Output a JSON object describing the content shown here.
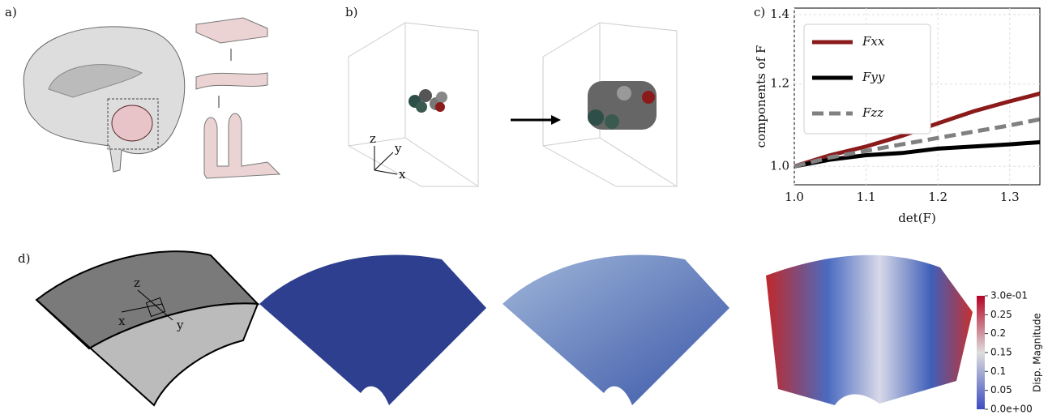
{
  "panel_labels": [
    "a)",
    "b)",
    "c)",
    "d)"
  ],
  "panel_b": {
    "axes": [
      "z",
      "y",
      "x"
    ]
  },
  "panel_d": {
    "axes": [
      "z",
      "x",
      "y"
    ],
    "colorbar": {
      "title": "Disp. Magnitude",
      "range": [
        0,
        0.3
      ],
      "ticks": [
        {
          "value": 0.3,
          "label": "3.0e-01"
        },
        0.25,
        0.2,
        0.15,
        0.1,
        0.05,
        {
          "value": 0,
          "label": "0.0e+00"
        }
      ]
    }
  },
  "chart_data": {
    "type": "line",
    "xlabel": "det(F)",
    "ylabel": "components of F",
    "x": [
      1.0,
      1.05,
      1.1,
      1.15,
      1.2,
      1.25,
      1.3,
      1.342
    ],
    "series": [
      {
        "name": "Fxx",
        "color": "#8b1a1a",
        "linestyle": "solid",
        "values": [
          1.0,
          1.025,
          1.045,
          1.07,
          1.1,
          1.13,
          1.155,
          1.175
        ]
      },
      {
        "name": "Fyy",
        "color": "#000000",
        "linestyle": "solid",
        "values": [
          1.0,
          1.015,
          1.025,
          1.03,
          1.04,
          1.045,
          1.05,
          1.055
        ]
      },
      {
        "name": "Fzz",
        "color": "#808080",
        "linestyle": "dashed",
        "values": [
          1.0,
          1.02,
          1.035,
          1.05,
          1.065,
          1.08,
          1.095,
          1.11
        ]
      }
    ],
    "xlim": [
      1.0,
      1.342
    ],
    "ylim": [
      0.96,
      1.42
    ],
    "yscale": "log",
    "xticks": [
      {
        "value": 1.0,
        "label": "1.0"
      },
      1.1,
      1.2,
      1.3
    ],
    "yticks": [
      {
        "value": 1.0,
        "label": "1.0"
      },
      {
        "value": 1.2,
        "label": "1.2"
      },
      {
        "value": 1.4,
        "label": "1.4"
      }
    ],
    "grid": true,
    "legend": "upper left"
  }
}
